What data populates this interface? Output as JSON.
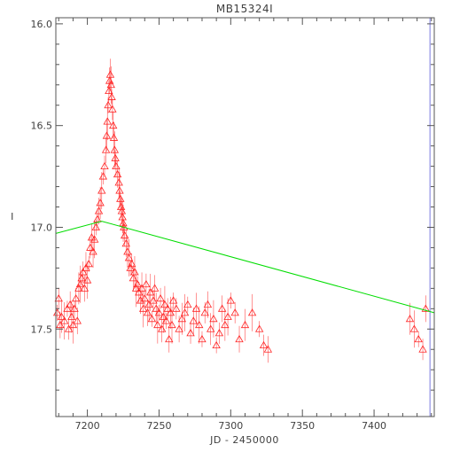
{
  "chart_data": {
    "type": "scatter",
    "title": "MB15324I",
    "xlabel": "JD - 2450000",
    "ylabel": "I",
    "xlim": [
      7178,
      7442
    ],
    "ylim": [
      17.93,
      15.97
    ],
    "y_inverted": true,
    "grid": false,
    "x_ticks": [
      7200,
      7250,
      7300,
      7350,
      7400
    ],
    "x_tick_labels": [
      "7200",
      "7250",
      "7300",
      "7350",
      "7400"
    ],
    "y_ticks": [
      16.0,
      16.5,
      17.0,
      17.5
    ],
    "y_tick_labels": [
      "16.0",
      "16.5",
      "17.0",
      "17.5"
    ],
    "colors": {
      "data": "#ff2222",
      "model": "#00dd00",
      "marker_line": "#7a7ae0",
      "axes": "#555555"
    },
    "marker_line_x": 7439,
    "series": [
      {
        "marker": "triangle-up",
        "color": "#ff2222",
        "x": [
          7179,
          7180,
          7181,
          7182,
          7184,
          7186,
          7187,
          7188,
          7189,
          7190,
          7191,
          7192,
          7193,
          7194,
          7195,
          7196,
          7197,
          7198,
          7199,
          7200,
          7201,
          7202,
          7203,
          7204,
          7205,
          7206,
          7207,
          7208,
          7209,
          7210,
          7211,
          7212,
          7213,
          7213.5,
          7214,
          7214.5,
          7215,
          7215.5,
          7216,
          7216.5,
          7217,
          7217.5,
          7218,
          7218.5,
          7219,
          7219.5,
          7220,
          7221,
          7222,
          7222.5,
          7223,
          7223.5,
          7224,
          7224.5,
          7225,
          7225.5,
          7226,
          7227,
          7228,
          7229,
          7230,
          7231,
          7232,
          7233,
          7234,
          7235,
          7236,
          7237,
          7238,
          7239,
          7240,
          7241,
          7242,
          7243,
          7244,
          7245,
          7246,
          7247,
          7248,
          7249,
          7250,
          7251,
          7252,
          7253,
          7254,
          7255,
          7256,
          7257,
          7258,
          7259,
          7260,
          7262,
          7264,
          7266,
          7268,
          7270,
          7272,
          7274,
          7276,
          7278,
          7280,
          7282,
          7284,
          7286,
          7288,
          7290,
          7292,
          7294,
          7296,
          7298,
          7300,
          7303,
          7306,
          7310,
          7315,
          7320,
          7323,
          7326,
          7425,
          7428,
          7431,
          7434,
          7436
        ],
        "y": [
          17.42,
          17.35,
          17.48,
          17.44,
          17.46,
          17.4,
          17.5,
          17.38,
          17.44,
          17.48,
          17.4,
          17.35,
          17.46,
          17.3,
          17.28,
          17.25,
          17.22,
          17.3,
          17.2,
          17.26,
          17.18,
          17.1,
          17.05,
          17.12,
          17.06,
          17.0,
          16.96,
          16.92,
          16.88,
          16.82,
          16.75,
          16.7,
          16.62,
          16.55,
          16.48,
          16.4,
          16.33,
          16.28,
          16.25,
          16.3,
          16.36,
          16.42,
          16.5,
          16.56,
          16.62,
          16.66,
          16.7,
          16.74,
          16.78,
          16.82,
          16.86,
          16.9,
          16.92,
          16.95,
          16.98,
          17.0,
          17.04,
          17.08,
          17.12,
          17.15,
          17.2,
          17.18,
          17.25,
          17.22,
          17.3,
          17.28,
          17.32,
          17.36,
          17.3,
          17.4,
          17.35,
          17.28,
          17.42,
          17.38,
          17.32,
          17.45,
          17.36,
          17.3,
          17.4,
          17.48,
          17.42,
          17.35,
          17.5,
          17.44,
          17.38,
          17.46,
          17.4,
          17.55,
          17.42,
          17.48,
          17.36,
          17.4,
          17.5,
          17.45,
          17.42,
          17.38,
          17.52,
          17.46,
          17.4,
          17.48,
          17.55,
          17.42,
          17.38,
          17.5,
          17.45,
          17.58,
          17.52,
          17.4,
          17.48,
          17.44,
          17.36,
          17.42,
          17.55,
          17.48,
          17.42,
          17.5,
          17.58,
          17.6,
          17.45,
          17.5,
          17.55,
          17.6,
          17.4
        ]
      },
      {
        "name": "",
        "type": "line",
        "color": "#00dd00",
        "x": [
          7178,
          7210,
          7442
        ],
        "y": [
          17.03,
          16.97,
          17.42
        ]
      }
    ]
  }
}
